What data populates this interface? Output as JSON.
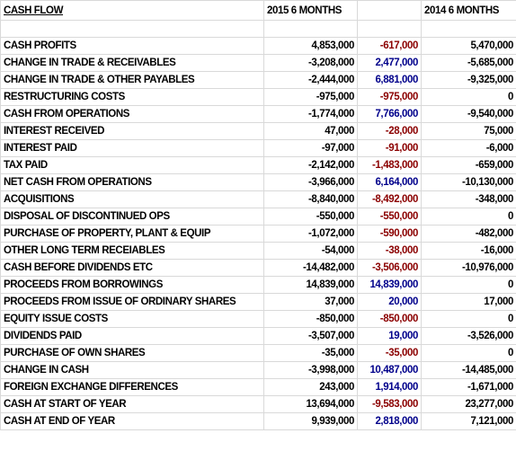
{
  "header": {
    "title": "CASH FLOW",
    "columns": [
      "2015 6 MONTHS",
      "2014 6 MONTHS"
    ]
  },
  "table": {
    "rows": [
      [
        "CASH PROFITS",
        "4,853,000",
        "-617,000",
        "5,470,000"
      ],
      [
        "CHANGE IN TRADE & RECEIVABLES",
        "-3,208,000",
        "2,477,000",
        "-5,685,000"
      ],
      [
        "CHANGE IN TRADE & OTHER PAYABLES",
        "-2,444,000",
        "6,881,000",
        "-9,325,000"
      ],
      [
        "RESTRUCTURING COSTS",
        "-975,000",
        "-975,000",
        "0"
      ],
      [
        "CASH FROM OPERATIONS",
        "-1,774,000",
        "7,766,000",
        "-9,540,000"
      ],
      [
        "INTEREST RECEIVED",
        "47,000",
        "-28,000",
        "75,000"
      ],
      [
        "INTEREST PAID",
        "-97,000",
        "-91,000",
        "-6,000"
      ],
      [
        "TAX PAID",
        "-2,142,000",
        "-1,483,000",
        "-659,000"
      ],
      [
        "NET CASH FROM OPERATIONS",
        "-3,966,000",
        "6,164,000",
        "-10,130,000"
      ],
      [
        "ACQUISITIONS",
        "-8,840,000",
        "-8,492,000",
        "-348,000"
      ],
      [
        "DISPOSAL OF DISCONTINUED OPS",
        "-550,000",
        "-550,000",
        "0"
      ],
      [
        "PURCHASE OF PROPERTY, PLANT & EQUIP",
        "-1,072,000",
        "-590,000",
        "-482,000"
      ],
      [
        "OTHER LONG TERM RECEIABLES",
        "-54,000",
        "-38,000",
        "-16,000"
      ],
      [
        "CASH BEFORE DIVIDENDS ETC",
        "-14,482,000",
        "-3,506,000",
        "-10,976,000"
      ],
      [
        "PROCEEDS FROM BORROWINGS",
        "14,839,000",
        "14,839,000",
        "0"
      ],
      [
        "PROCEEDS FROM ISSUE OF ORDINARY SHARES",
        "37,000",
        "20,000",
        "17,000"
      ],
      [
        "EQUITY ISSUE COSTS",
        "-850,000",
        "-850,000",
        "0"
      ],
      [
        "DIVIDENDS PAID",
        "-3,507,000",
        "19,000",
        "-3,526,000"
      ],
      [
        "PURCHASE OF OWN SHARES",
        "-35,000",
        "-35,000",
        "0"
      ],
      [
        "CHANGE IN CASH",
        "-3,998,000",
        "10,487,000",
        "-14,485,000"
      ],
      [
        "FOREIGN EXCHANGE DIFFERENCES",
        "243,000",
        "1,914,000",
        "-1,671,000"
      ],
      [
        "CASH AT START OF YEAR",
        "13,694,000",
        "-9,583,000",
        "23,277,000"
      ],
      [
        "CASH AT END OF YEAR",
        "9,939,000",
        "2,818,000",
        "7,121,000"
      ]
    ]
  }
}
